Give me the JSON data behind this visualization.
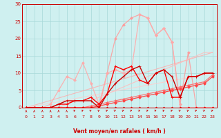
{
  "xlabel": "Vent moyen/en rafales ( km/h )",
  "xlim": [
    -0.5,
    23.5
  ],
  "ylim": [
    0,
    30
  ],
  "xticks": [
    0,
    1,
    2,
    3,
    4,
    5,
    6,
    7,
    8,
    9,
    10,
    11,
    12,
    13,
    14,
    15,
    16,
    17,
    18,
    19,
    20,
    21,
    22,
    23
  ],
  "yticks": [
    0,
    5,
    10,
    15,
    20,
    25,
    30
  ],
  "bg_color": "#cff0f0",
  "grid_color": "#a8d8d8",
  "lines": [
    {
      "x": [
        0,
        23
      ],
      "y": [
        0,
        16
      ],
      "color": "#ffaaaa",
      "lw": 0.8,
      "marker": "None",
      "ms": 0,
      "alpha": 0.8
    },
    {
      "x": [
        0,
        23
      ],
      "y": [
        0,
        10
      ],
      "color": "#ffcccc",
      "lw": 0.8,
      "marker": "None",
      "ms": 0,
      "alpha": 0.8
    },
    {
      "x": [
        0,
        1,
        2,
        3,
        4,
        5,
        6,
        7,
        8,
        9,
        10,
        11,
        12,
        13,
        14,
        15,
        16,
        17,
        18,
        19,
        20,
        21,
        22,
        23
      ],
      "y": [
        0,
        0,
        0,
        0,
        0,
        0,
        0,
        0,
        0,
        0,
        10,
        20,
        24,
        26,
        27,
        26,
        21,
        23,
        19,
        1,
        16,
        0,
        0,
        0
      ],
      "color": "#ff9999",
      "lw": 0.9,
      "marker": "D",
      "ms": 2,
      "alpha": 0.85
    },
    {
      "x": [
        0,
        1,
        2,
        3,
        4,
        5,
        6,
        7,
        8,
        9,
        10,
        11,
        12,
        13,
        14,
        15,
        16,
        17,
        18,
        19,
        20,
        21,
        22,
        23
      ],
      "y": [
        0,
        0,
        0,
        1,
        5,
        9,
        8,
        13,
        7,
        1,
        10,
        11,
        10,
        11,
        27,
        26,
        21,
        23,
        19,
        0,
        0,
        0,
        0,
        0
      ],
      "color": "#ffaaaa",
      "lw": 0.9,
      "marker": "D",
      "ms": 2,
      "alpha": 0.9
    },
    {
      "x": [
        0,
        1,
        2,
        3,
        4,
        5,
        6,
        7,
        8,
        9,
        10,
        11,
        12,
        13,
        14,
        15,
        16,
        17,
        18,
        19,
        20,
        21,
        22,
        23
      ],
      "y": [
        0,
        0,
        0,
        0,
        0,
        1,
        2,
        2,
        2,
        3,
        4,
        5,
        6,
        7,
        8,
        9,
        10,
        11,
        12,
        13,
        14,
        15,
        16,
        16
      ],
      "color": "#ffbbbb",
      "lw": 0.8,
      "marker": "None",
      "ms": 0,
      "alpha": 0.85
    },
    {
      "x": [
        0,
        1,
        2,
        3,
        4,
        5,
        6,
        7,
        8,
        9,
        10,
        11,
        12,
        13,
        14,
        15,
        16,
        17,
        18,
        19,
        20,
        21,
        22,
        23
      ],
      "y": [
        0,
        0,
        0,
        0,
        0,
        0,
        0,
        0,
        0.5,
        1,
        1.5,
        2,
        2.5,
        3,
        3.5,
        4,
        4.5,
        5,
        5.5,
        6,
        6.5,
        7,
        7.5,
        9.5
      ],
      "color": "#ff6666",
      "lw": 0.9,
      "marker": "D",
      "ms": 2,
      "alpha": 0.85
    },
    {
      "x": [
        0,
        1,
        2,
        3,
        4,
        5,
        6,
        7,
        8,
        9,
        10,
        11,
        12,
        13,
        14,
        15,
        16,
        17,
        18,
        19,
        20,
        21,
        22,
        23
      ],
      "y": [
        0,
        0,
        0,
        0,
        0,
        0,
        0,
        0,
        0,
        0.5,
        1,
        1.5,
        2,
        2.5,
        3,
        3.5,
        4,
        4.5,
        5,
        5.5,
        6,
        6.5,
        7,
        9
      ],
      "color": "#ff4444",
      "lw": 0.9,
      "marker": "D",
      "ms": 2,
      "alpha": 1.0
    },
    {
      "x": [
        0,
        1,
        2,
        3,
        4,
        5,
        6,
        7,
        8,
        9,
        10,
        11,
        12,
        13,
        14,
        15,
        16,
        17,
        18,
        19,
        20,
        21,
        22,
        23
      ],
      "y": [
        0,
        0,
        0,
        0,
        1,
        1,
        2,
        2,
        3,
        1,
        4,
        12,
        11,
        12,
        8,
        7,
        10,
        11,
        3,
        3,
        9,
        9,
        10,
        10
      ],
      "color": "#ff0000",
      "lw": 1.0,
      "marker": "+",
      "ms": 3,
      "alpha": 1.0
    },
    {
      "x": [
        0,
        1,
        2,
        3,
        4,
        5,
        6,
        7,
        8,
        9,
        10,
        11,
        12,
        13,
        14,
        15,
        16,
        17,
        18,
        19,
        20,
        21,
        22,
        23
      ],
      "y": [
        0,
        0,
        0,
        0,
        1,
        2,
        2,
        2,
        2,
        0,
        4,
        7,
        9,
        11,
        12,
        7,
        10,
        11,
        9,
        3,
        9,
        9,
        10,
        10
      ],
      "color": "#cc0000",
      "lw": 1.0,
      "marker": "+",
      "ms": 3,
      "alpha": 1.0
    },
    {
      "x": [
        0,
        1,
        2,
        3,
        4,
        5,
        6,
        7,
        8,
        9,
        10,
        11,
        12,
        13,
        14,
        15,
        16,
        17,
        18,
        19,
        20,
        21,
        22,
        23
      ],
      "y": [
        0,
        0,
        0,
        0,
        0,
        0,
        0,
        0,
        0,
        0,
        0,
        0,
        0,
        0,
        0,
        0,
        0,
        0,
        0,
        0,
        0,
        0,
        0,
        0
      ],
      "color": "#dd0000",
      "lw": 0.8,
      "marker": "D",
      "ms": 1.5,
      "alpha": 1.0
    }
  ],
  "wind_directions": [
    90,
    90,
    90,
    90,
    90,
    90,
    50,
    50,
    50,
    50,
    45,
    45,
    45,
    45,
    45,
    45,
    45,
    45,
    45,
    45,
    45,
    45,
    45,
    45
  ]
}
